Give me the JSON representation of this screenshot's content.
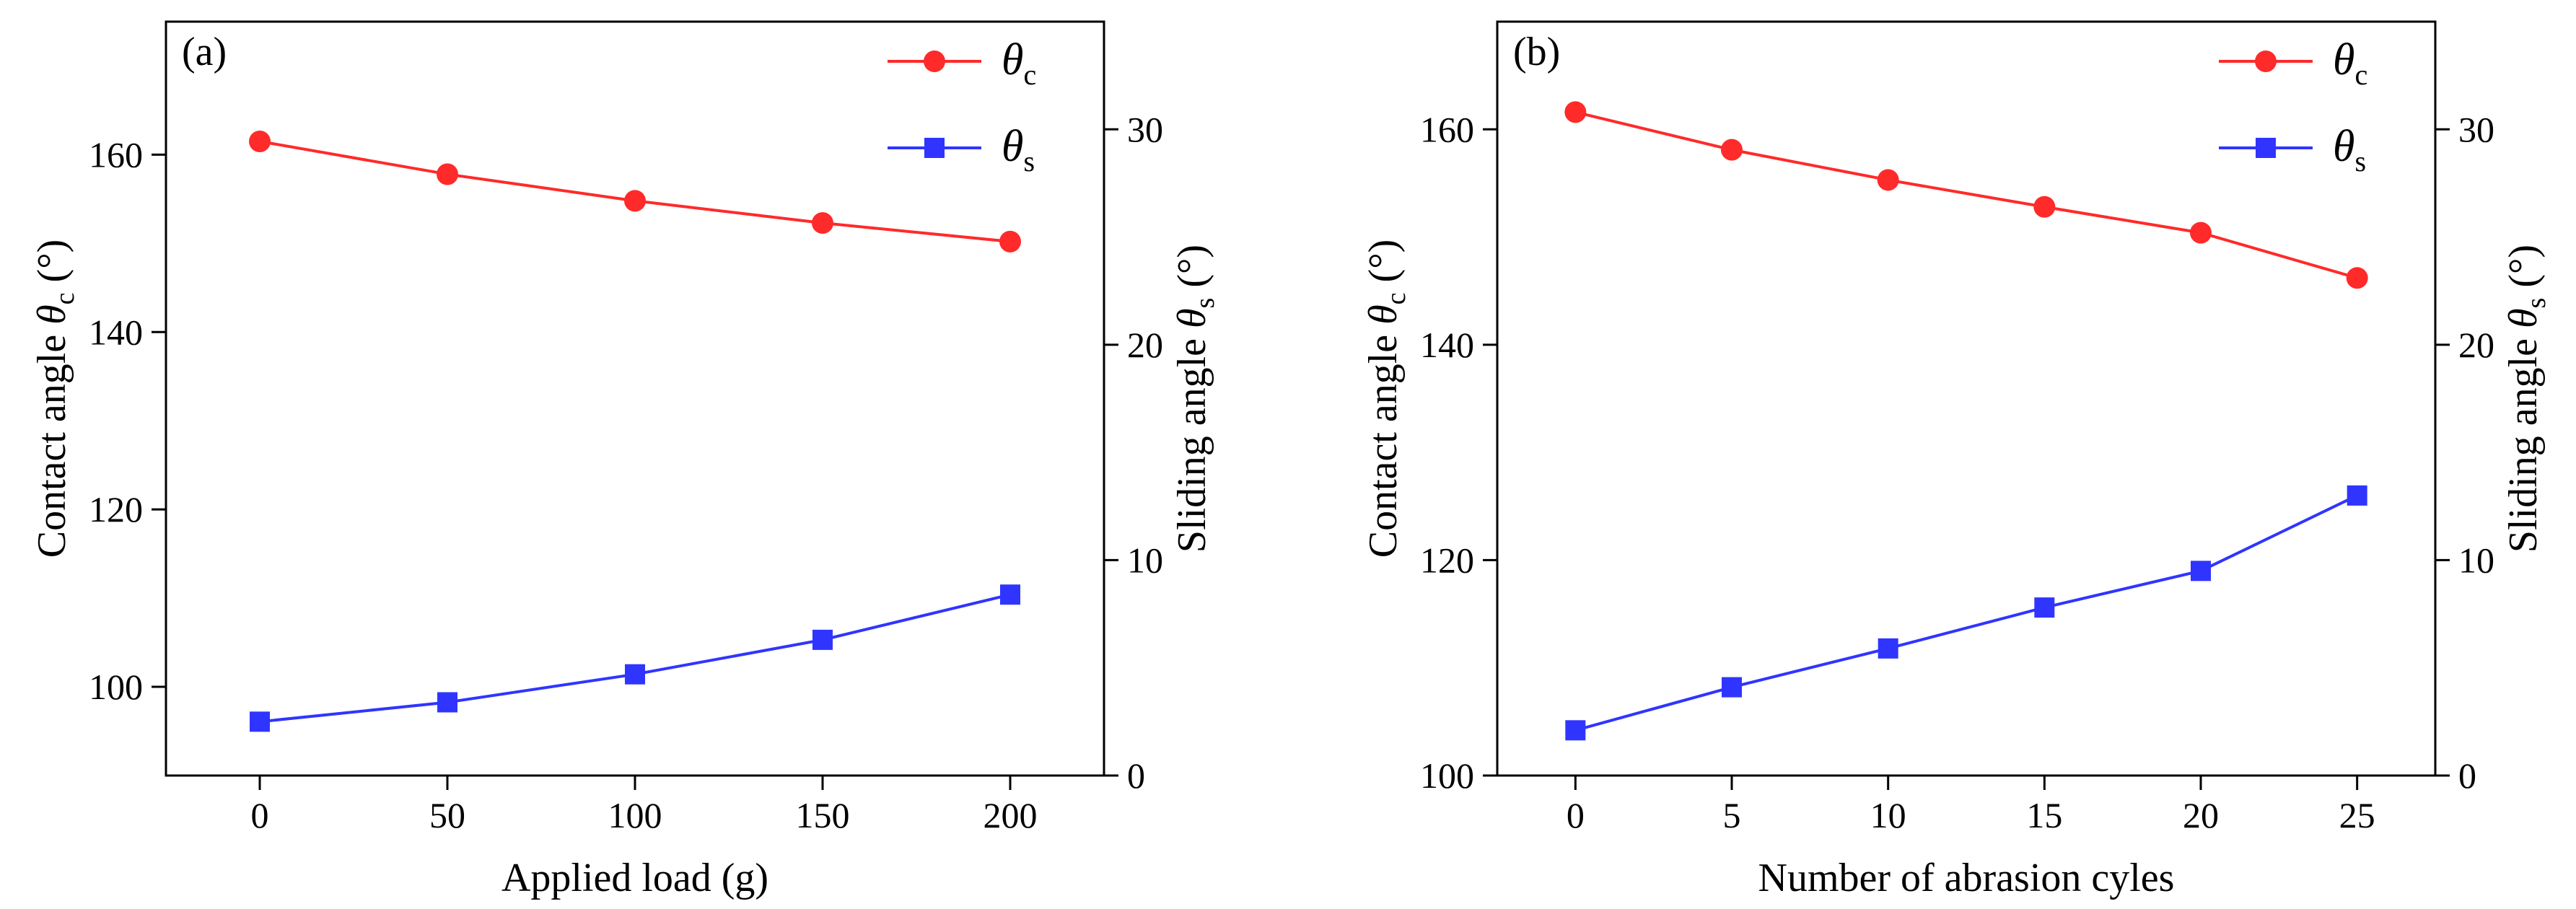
{
  "colors": {
    "theta_c": "#ff2a2a",
    "theta_s": "#2f35ff",
    "axis": "#000000"
  },
  "chart_data": [
    {
      "type": "line",
      "panel_label": "(a)",
      "xlabel": "Applied load (g)",
      "ylabel_left": {
        "main": "Contact angle ",
        "symbol": "θ",
        "sub": "c",
        "unit": " (°)"
      },
      "ylabel_right": {
        "main": "Sliding angle ",
        "symbol": "θ",
        "sub": "s",
        "unit": " (°)"
      },
      "x": [
        0,
        50,
        100,
        150,
        200
      ],
      "x_ticks": [
        0,
        50,
        100,
        150,
        200
      ],
      "x_tick_labels": [
        "0",
        "50",
        "100",
        "150",
        "200"
      ],
      "xlim": [
        -25,
        225
      ],
      "ylim_left": [
        90,
        175
      ],
      "y_left_ticks": [
        100,
        120,
        140,
        160
      ],
      "y_left_tick_labels": [
        "100",
        "120",
        "140",
        "160"
      ],
      "ylim_right": [
        0,
        35
      ],
      "y_right_ticks": [
        0,
        10,
        20,
        30
      ],
      "y_right_tick_labels": [
        "0",
        "10",
        "20",
        "30"
      ],
      "series": [
        {
          "name": "θc",
          "symbol": "θ",
          "sub": "c",
          "axis": "left",
          "marker": "circle",
          "values": [
            161.5,
            157.8,
            154.8,
            152.3,
            150.2
          ]
        },
        {
          "name": "θs",
          "symbol": "θ",
          "sub": "s",
          "axis": "right",
          "marker": "square",
          "values": [
            2.5,
            3.4,
            4.7,
            6.3,
            8.4
          ]
        }
      ],
      "legend": "top-right"
    },
    {
      "type": "line",
      "panel_label": "(b)",
      "xlabel": "Number of abrasion cyles",
      "ylabel_left": {
        "main": "Contact angle ",
        "symbol": "θ",
        "sub": "c",
        "unit": " (°)"
      },
      "ylabel_right": {
        "main": "Sliding angle ",
        "symbol": "θ",
        "sub": "s",
        "unit": " (°)"
      },
      "x": [
        0,
        5,
        10,
        15,
        20,
        25
      ],
      "x_ticks": [
        0,
        5,
        10,
        15,
        20,
        25
      ],
      "x_tick_labels": [
        "0",
        "5",
        "10",
        "15",
        "20",
        "25"
      ],
      "xlim": [
        -2.5,
        27.5
      ],
      "ylim_left": [
        100,
        170
      ],
      "y_left_ticks": [
        100,
        120,
        140,
        160
      ],
      "y_left_tick_labels": [
        "100",
        "120",
        "140",
        "160"
      ],
      "ylim_right": [
        0,
        35
      ],
      "y_right_ticks": [
        0,
        10,
        20,
        30
      ],
      "y_right_tick_labels": [
        "0",
        "10",
        "20",
        "30"
      ],
      "series": [
        {
          "name": "θc",
          "symbol": "θ",
          "sub": "c",
          "axis": "left",
          "marker": "circle",
          "values": [
            161.6,
            158.1,
            155.3,
            152.8,
            150.4,
            146.2
          ]
        },
        {
          "name": "θs",
          "symbol": "θ",
          "sub": "s",
          "axis": "right",
          "marker": "square",
          "values": [
            2.1,
            4.1,
            5.9,
            7.8,
            9.5,
            13.0
          ]
        }
      ],
      "legend": "top-right"
    }
  ]
}
